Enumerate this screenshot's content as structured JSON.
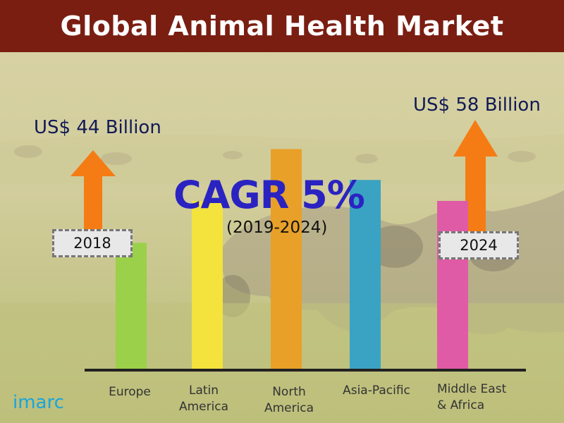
{
  "title": "Global Animal Health Market",
  "value_2018": "US$ 44 Billion",
  "value_2024": "US$ 58 Billion",
  "year_start": "2018",
  "year_end": "2024",
  "cagr": "CAGR 5%",
  "cagr_period": "(2019-2024)",
  "logo_text": "imarc",
  "colors": {
    "title_bg": "#7a1e12",
    "arrow": "#f57c14",
    "cagr": "#2a23c2"
  },
  "chart_data": {
    "type": "bar",
    "title": "Global Animal Health Market",
    "categories": [
      "Europe",
      "Latin\nAmerica",
      "North\nAmerica",
      "Asia-Pacific",
      "Middle East\n& Africa"
    ],
    "values": [
      102,
      136,
      178,
      153,
      136
    ],
    "colors": [
      "#9bd04a",
      "#f3e33c",
      "#e8a028",
      "#3aa3c3",
      "#e05ba6"
    ],
    "ylim": [
      0,
      200
    ],
    "grid": false,
    "axis_labels_shown": false
  }
}
